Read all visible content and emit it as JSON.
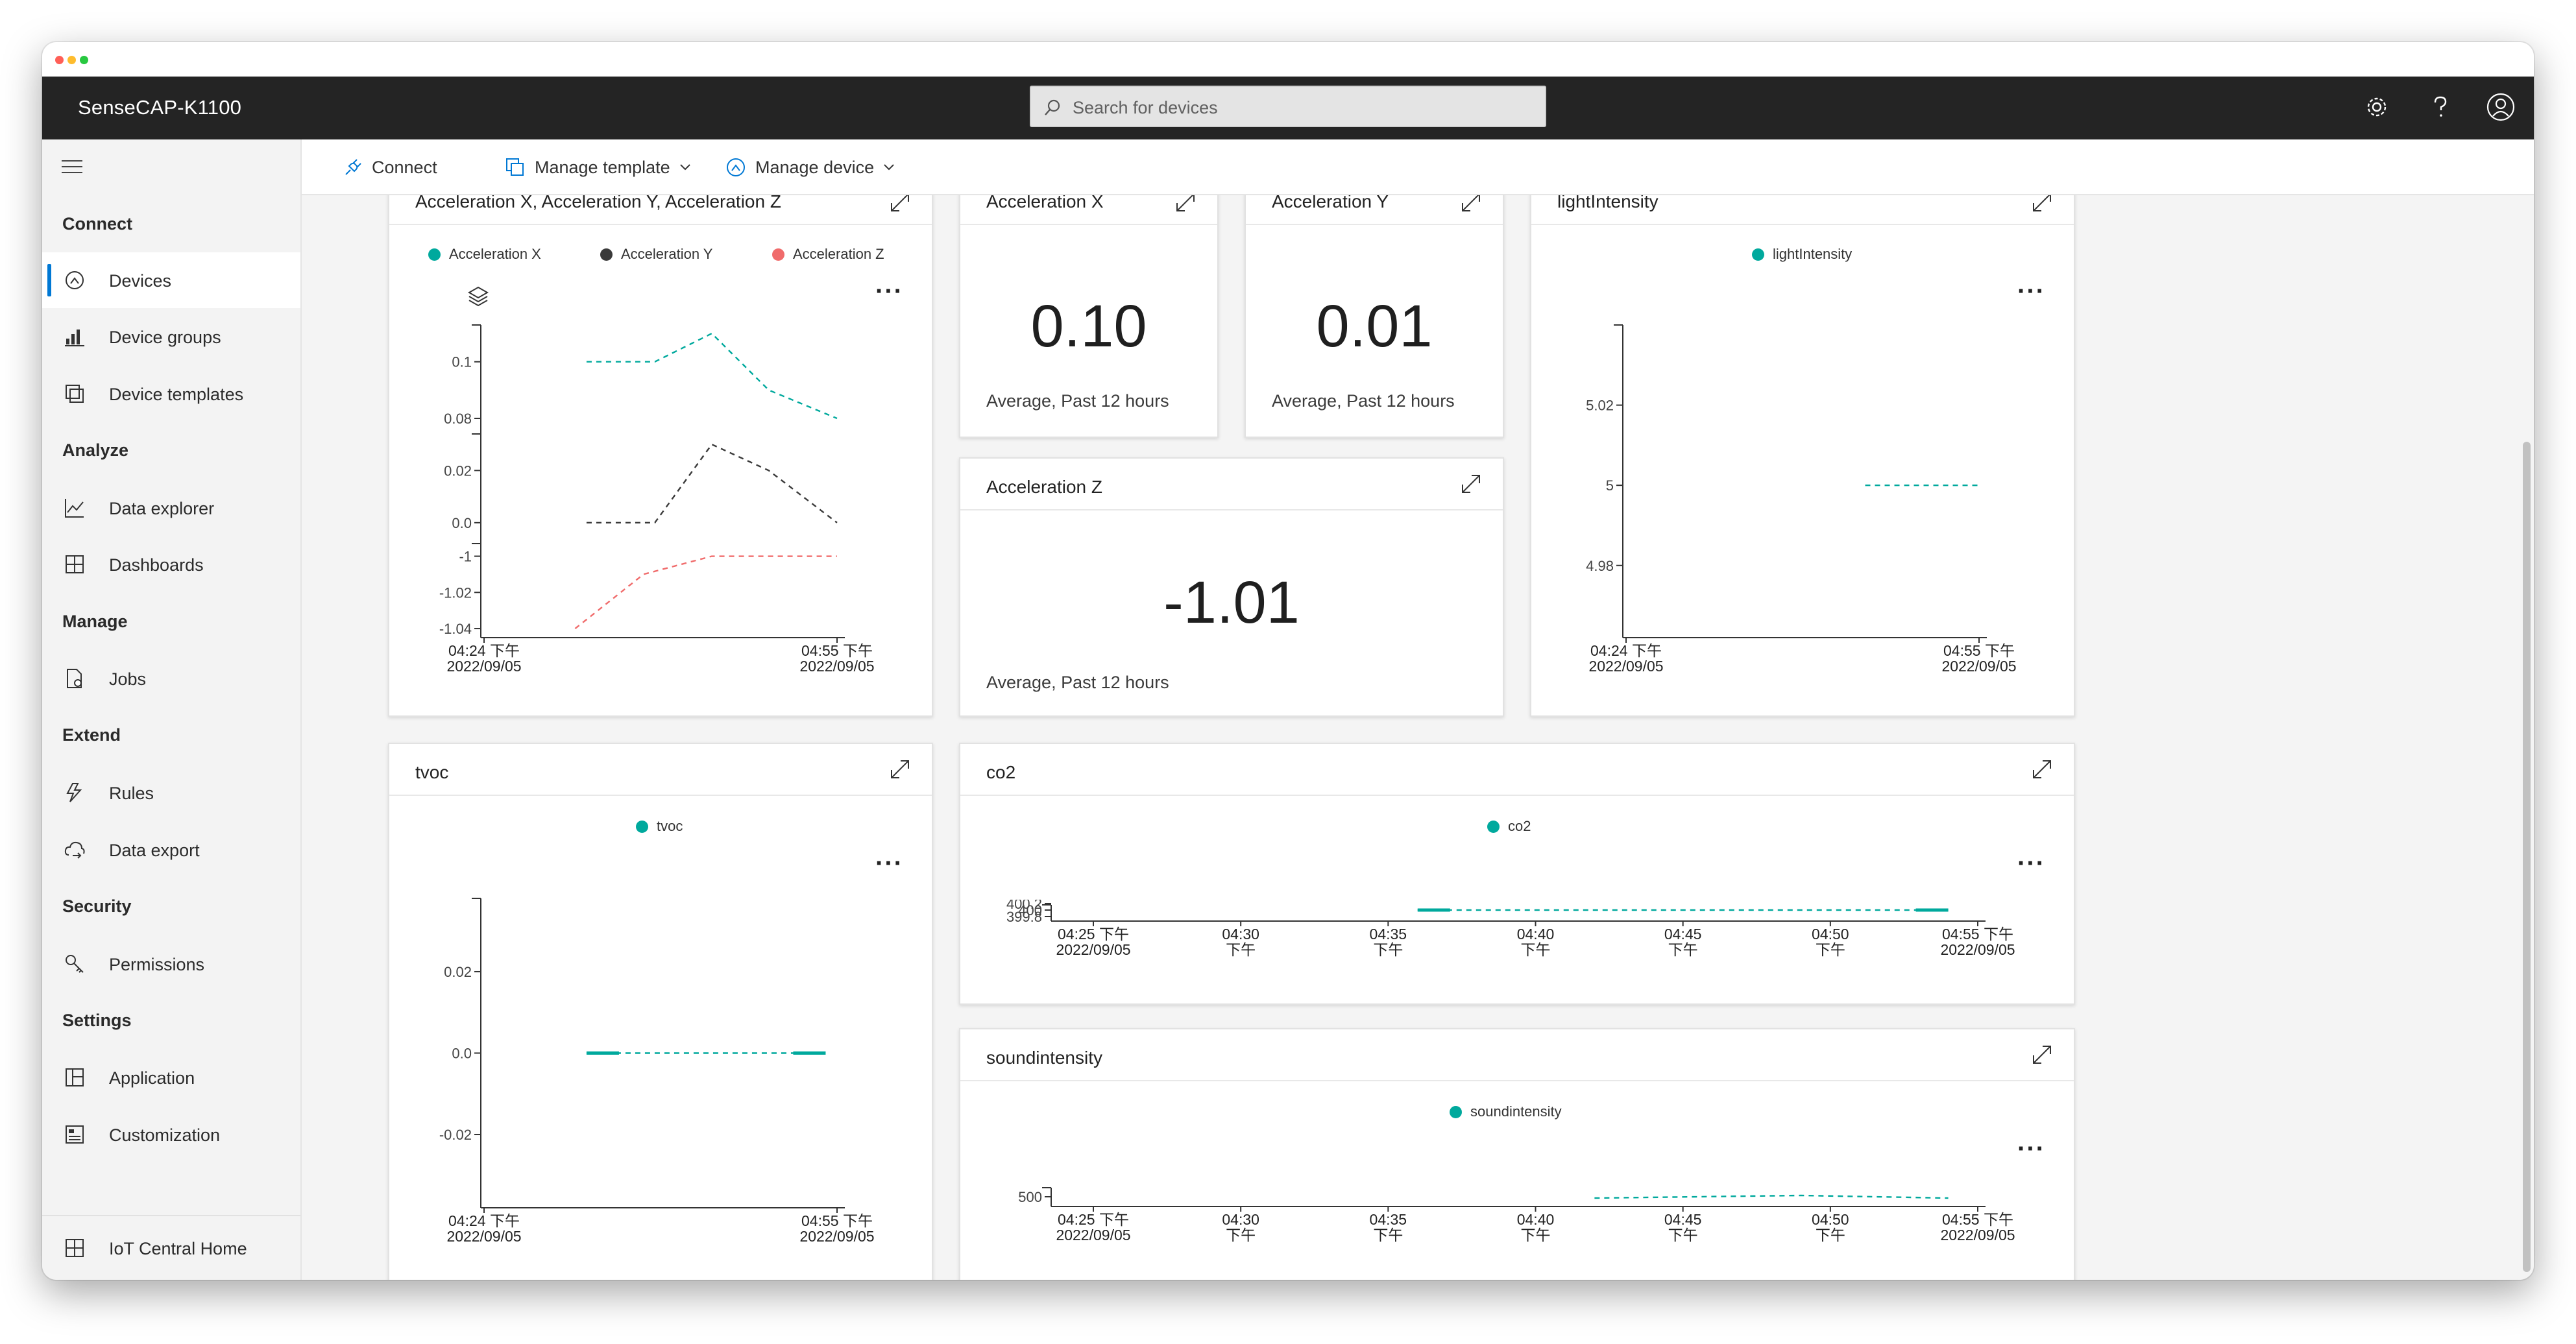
{
  "app": {
    "title": "SenseCAP-K1100"
  },
  "search": {
    "placeholder": "Search for devices"
  },
  "sidebar": {
    "sections": [
      {
        "label": "Connect"
      },
      {
        "label": "Analyze"
      },
      {
        "label": "Manage"
      },
      {
        "label": "Extend"
      },
      {
        "label": "Security"
      },
      {
        "label": "Settings"
      }
    ],
    "items": [
      {
        "label": "Devices",
        "icon": "devices-icon",
        "active": true
      },
      {
        "label": "Device groups",
        "icon": "device-groups-icon"
      },
      {
        "label": "Device templates",
        "icon": "device-templates-icon"
      },
      {
        "label": "Data explorer",
        "icon": "data-explorer-icon"
      },
      {
        "label": "Dashboards",
        "icon": "dashboards-icon"
      },
      {
        "label": "Jobs",
        "icon": "jobs-icon"
      },
      {
        "label": "Rules",
        "icon": "rules-icon"
      },
      {
        "label": "Data export",
        "icon": "data-export-icon"
      },
      {
        "label": "Permissions",
        "icon": "permissions-icon"
      },
      {
        "label": "Application",
        "icon": "application-icon"
      },
      {
        "label": "Customization",
        "icon": "customization-icon"
      },
      {
        "label": "IoT Central Home",
        "icon": "iot-central-home-icon"
      }
    ]
  },
  "commands": {
    "connect": "Connect",
    "manage_template": "Manage template",
    "manage_device": "Manage device"
  },
  "colors": {
    "accent": "#0078d4",
    "series_x": "#00a99d",
    "series_y": "#3a3a3a",
    "series_z": "#f06b6b",
    "topbar": "#242424"
  },
  "tiles": {
    "accel_chart": {
      "title": "Acceleration X, Acceleration Y, Acceleration Z"
    },
    "accel_x": {
      "title": "Acceleration X",
      "value": "0.10",
      "subtitle": "Average, Past 12 hours"
    },
    "accel_y": {
      "title": "Acceleration Y",
      "value": "0.01",
      "subtitle": "Average, Past 12 hours"
    },
    "accel_z": {
      "title": "Acceleration Z",
      "value": "-1.01",
      "subtitle": "Average, Past 12 hours"
    },
    "light": {
      "title": "lightIntensity"
    },
    "tvoc": {
      "title": "tvoc"
    },
    "co2": {
      "title": "co2"
    },
    "sound": {
      "title": "soundintensity"
    }
  },
  "chart_data": [
    {
      "type": "line",
      "title": "Acceleration X, Acceleration Y, Acceleration Z",
      "x_ticks": [
        "04:24 下午\n2022/09/05",
        "04:55 下午\n2022/09/05"
      ],
      "series": [
        {
          "name": "Acceleration X",
          "color": "#00a99d",
          "x": [
            "04:33",
            "04:39",
            "04:44",
            "04:49",
            "04:55"
          ],
          "values": [
            0.1,
            0.1,
            0.11,
            0.09,
            0.08
          ],
          "yticks": [
            "0.1",
            "0.08"
          ]
        },
        {
          "name": "Acceleration Y",
          "color": "#3a3a3a",
          "x": [
            "04:33",
            "04:39",
            "04:44",
            "04:49",
            "04:55"
          ],
          "values": [
            0.0,
            0.0,
            0.03,
            0.02,
            0.0
          ],
          "yticks": [
            "0.02",
            "0.0"
          ]
        },
        {
          "name": "Acceleration Z",
          "color": "#f06b6b",
          "x": [
            "04:32",
            "04:38",
            "04:44",
            "04:49",
            "04:55"
          ],
          "values": [
            -1.04,
            -1.01,
            -1.0,
            -1.0,
            -1.0
          ],
          "yticks": [
            "-1",
            "-1.02",
            "-1.04"
          ]
        }
      ],
      "legend": "top"
    },
    {
      "type": "line",
      "title": "lightIntensity",
      "x_ticks": [
        "04:24 下午\n2022/09/05",
        "04:55 下午\n2022/09/05"
      ],
      "yticks": [
        "5.02",
        "5",
        "4.98"
      ],
      "ylim": [
        4.962,
        5.04
      ],
      "series": [
        {
          "name": "lightIntensity",
          "color": "#00a99d",
          "x": [
            "04:45",
            "04:55"
          ],
          "values": [
            5,
            5
          ]
        }
      ],
      "legend": "top"
    },
    {
      "type": "line",
      "title": "tvoc",
      "x_ticks": [
        "04:24 下午\n2022/09/05",
        "04:55 下午\n2022/09/05"
      ],
      "yticks": [
        "0.02",
        "0.0",
        "-0.02"
      ],
      "ylim": [
        -0.038,
        0.038
      ],
      "series": [
        {
          "name": "tvoc",
          "color": "#00a99d",
          "x": [
            "04:33",
            "04:54"
          ],
          "values": [
            0,
            0
          ]
        }
      ],
      "legend": "top"
    },
    {
      "type": "line",
      "title": "co2",
      "x_ticks": [
        "04:25 下午\n2022/09/05",
        "04:30\n下午",
        "04:35\n下午",
        "04:40\n下午",
        "04:45\n下午",
        "04:50\n下午",
        "04:55 下午\n2022/09/05"
      ],
      "yticks": [
        "400.2",
        "400",
        "399.8"
      ],
      "series": [
        {
          "name": "co2",
          "color": "#00a99d",
          "x": [
            "04:36",
            "04:54"
          ],
          "values": [
            400,
            400
          ]
        }
      ],
      "legend": "top"
    },
    {
      "type": "line",
      "title": "soundintensity",
      "x_ticks": [
        "04:25 下午\n2022/09/05",
        "04:30\n下午",
        "04:35\n下午",
        "04:40\n下午",
        "04:45\n下午",
        "04:50\n下午",
        "04:55 下午\n2022/09/05"
      ],
      "yticks": [
        "500"
      ],
      "series": [
        {
          "name": "soundintensity",
          "color": "#00a99d",
          "x": [
            "04:42",
            "04:49",
            "04:54"
          ],
          "values": [
            500,
            501,
            500
          ]
        }
      ],
      "legend": "top"
    }
  ]
}
